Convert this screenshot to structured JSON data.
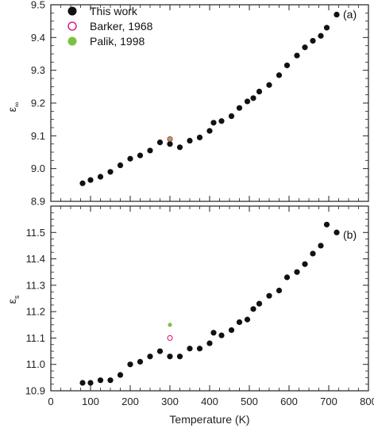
{
  "chart_data": [
    {
      "type": "scatter",
      "panel_label": "(a)",
      "ylabel": "ε",
      "ylabel_sub": "∞",
      "xlim": [
        0,
        800
      ],
      "ylim": [
        8.9,
        9.5
      ],
      "yticks": [
        "8.9",
        "9.0",
        "9.1",
        "9.2",
        "9.3",
        "9.4",
        "9.5"
      ],
      "legend": {
        "position": "top-left",
        "entries": [
          {
            "label": "This work",
            "color": "#111111",
            "marker": "filled-circle"
          },
          {
            "label": "Barker, 1968",
            "color": "#d4006e",
            "marker": "open-circle"
          },
          {
            "label": "Palik, 1998",
            "color": "#7cc242",
            "marker": "filled-circle"
          }
        ]
      },
      "series": [
        {
          "name": "This work",
          "color": "#111111",
          "marker": "filled-circle",
          "x": [
            80,
            100,
            125,
            150,
            175,
            200,
            225,
            250,
            275,
            300,
            325,
            350,
            375,
            400,
            410,
            430,
            455,
            475,
            495,
            510,
            525,
            550,
            575,
            595,
            620,
            640,
            660,
            680,
            695,
            720
          ],
          "y": [
            8.955,
            8.965,
            8.975,
            8.99,
            9.01,
            9.03,
            9.04,
            9.055,
            9.08,
            9.075,
            9.065,
            9.085,
            9.095,
            9.115,
            9.14,
            9.145,
            9.16,
            9.185,
            9.205,
            9.215,
            9.235,
            9.255,
            9.285,
            9.315,
            9.345,
            9.37,
            9.39,
            9.405,
            9.43,
            9.47
          ]
        },
        {
          "name": "Barker, 1968",
          "color": "#d4006e",
          "marker": "open-circle",
          "x": [
            300
          ],
          "y": [
            9.09
          ]
        },
        {
          "name": "Palik, 1998",
          "color": "#7cc242",
          "marker": "filled-circle",
          "x": [
            300
          ],
          "y": [
            9.09
          ]
        }
      ]
    },
    {
      "type": "scatter",
      "panel_label": "(b)",
      "ylabel": "ε",
      "ylabel_sub": "s",
      "xlabel": "Temperature (K)",
      "xlim": [
        0,
        800
      ],
      "ylim": [
        10.9,
        11.6
      ],
      "xticks": [
        "0",
        "100",
        "200",
        "300",
        "400",
        "500",
        "600",
        "700",
        "800"
      ],
      "yticks": [
        "10.9",
        "11.0",
        "11.1",
        "11.2",
        "11.3",
        "11.4",
        "11.5"
      ],
      "series": [
        {
          "name": "This work",
          "color": "#111111",
          "marker": "filled-circle",
          "x": [
            80,
            100,
            125,
            150,
            175,
            200,
            225,
            250,
            275,
            300,
            325,
            350,
            375,
            400,
            410,
            430,
            455,
            475,
            495,
            510,
            525,
            550,
            575,
            595,
            620,
            640,
            660,
            680,
            695,
            720
          ],
          "y": [
            10.93,
            10.93,
            10.94,
            10.94,
            10.96,
            11.0,
            11.01,
            11.03,
            11.05,
            11.03,
            11.03,
            11.06,
            11.06,
            11.08,
            11.12,
            11.11,
            11.13,
            11.16,
            11.17,
            11.21,
            11.23,
            11.26,
            11.28,
            11.33,
            11.35,
            11.38,
            11.42,
            11.45,
            11.53,
            11.5
          ]
        },
        {
          "name": "Barker, 1968",
          "color": "#d4006e",
          "marker": "open-circle",
          "x": [
            300
          ],
          "y": [
            11.1
          ]
        },
        {
          "name": "Palik, 1998",
          "color": "#7cc242",
          "marker": "filled-circle",
          "x": [
            300
          ],
          "y": [
            11.15
          ]
        }
      ]
    }
  ]
}
